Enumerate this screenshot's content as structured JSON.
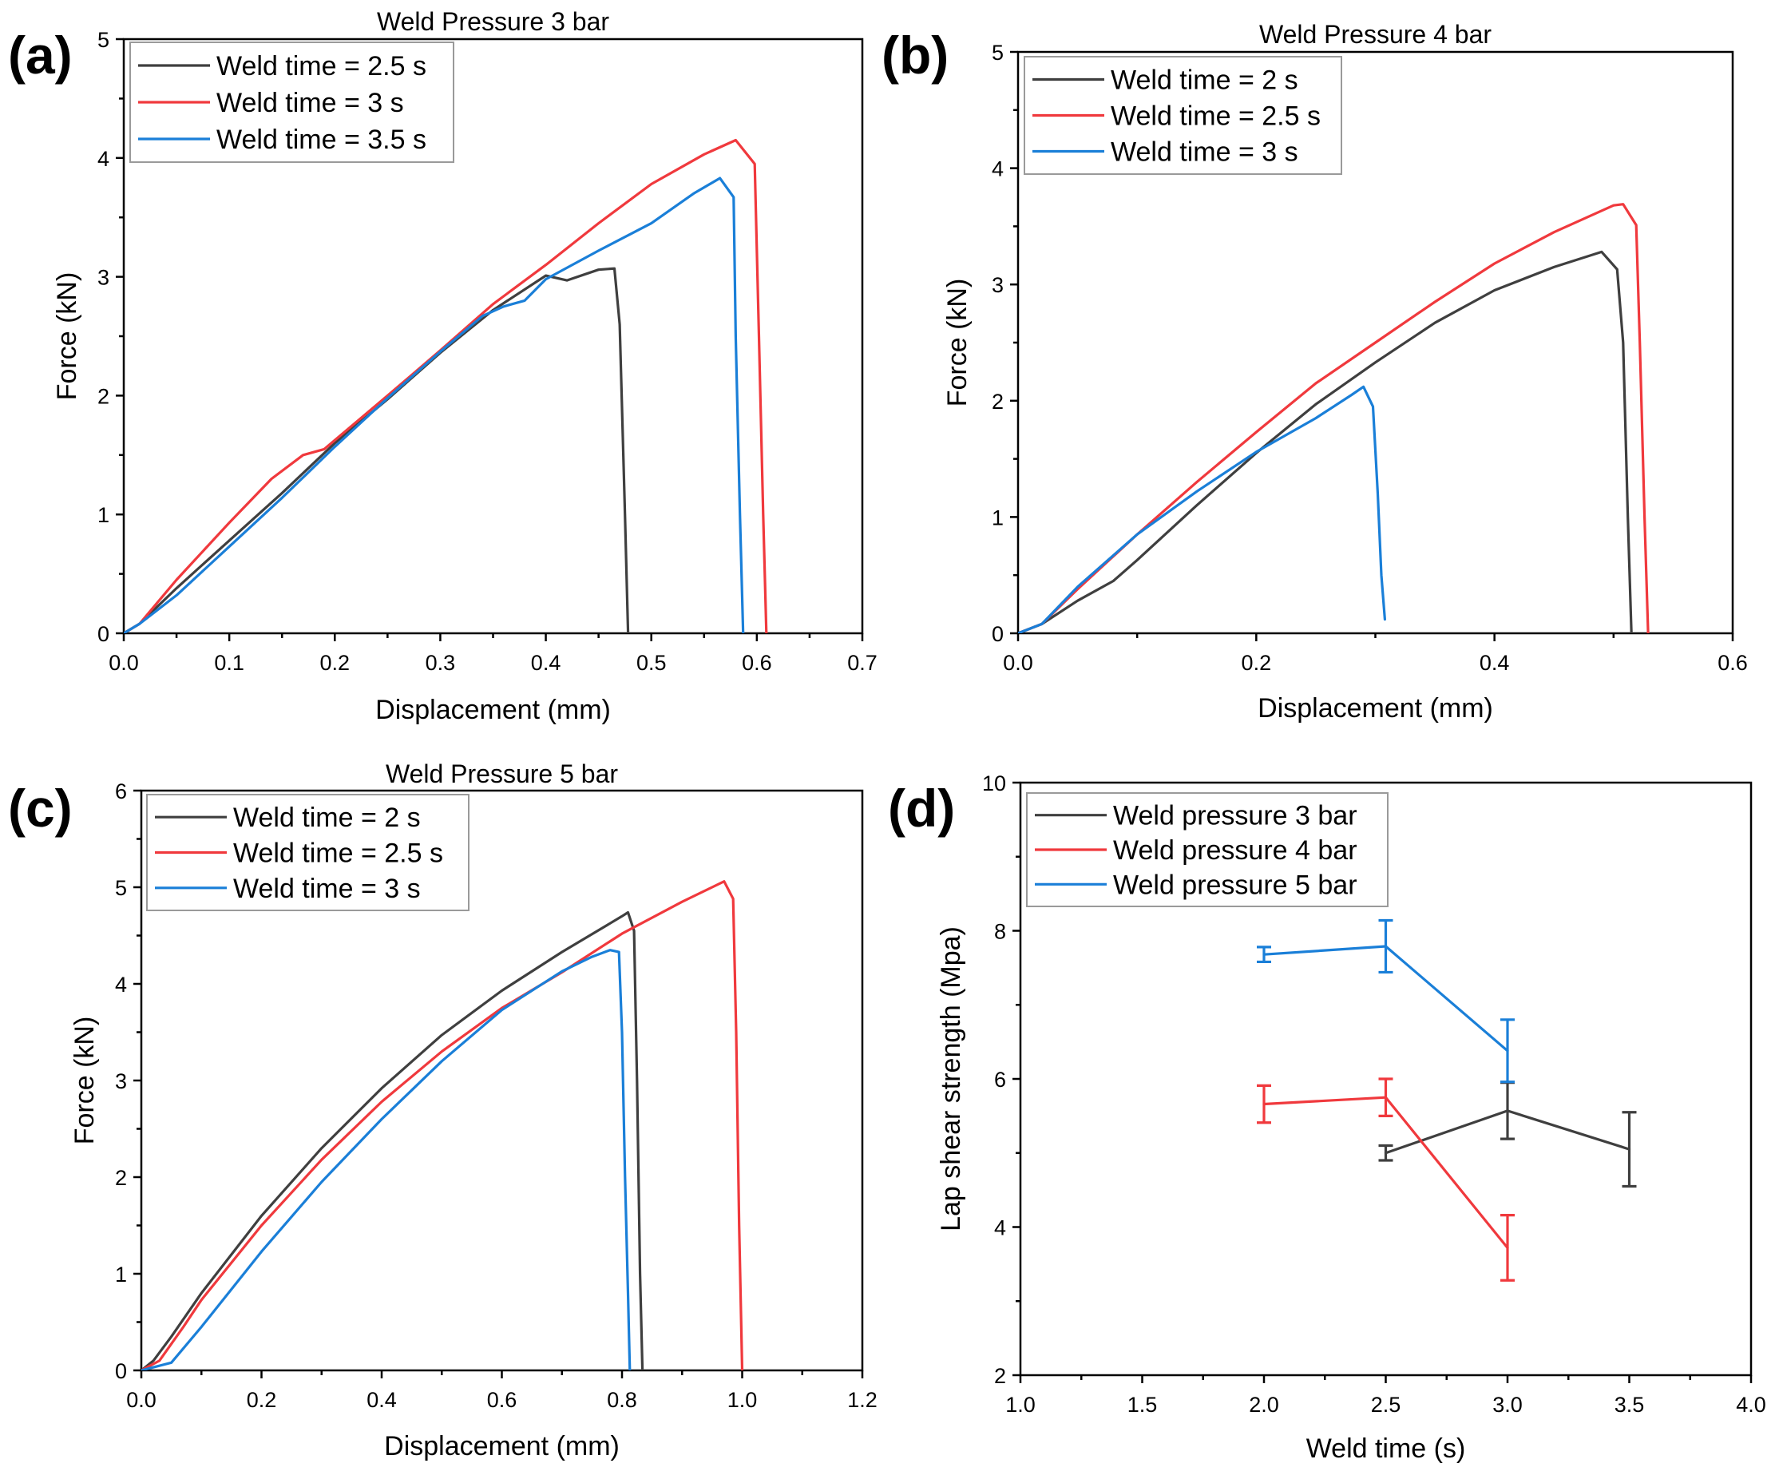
{
  "colors": {
    "gray": "#3f3f3f",
    "red": "#f0393d",
    "blue": "#1a7fd8"
  },
  "chart_data": [
    {
      "id": "a",
      "panel_label": "(a)",
      "type": "line",
      "title": "Weld Pressure 3 bar",
      "xlabel": "Displacement (mm)",
      "ylabel": "Force (kN)",
      "xlim": [
        0,
        0.7
      ],
      "ylim": [
        0,
        5
      ],
      "xticks": [
        0,
        0.1,
        0.2,
        0.3,
        0.4,
        0.5,
        0.6,
        0.7
      ],
      "xtick_labels": [
        "0.0",
        "0.1",
        "0.2",
        "0.3",
        "0.4",
        "0.5",
        "0.6",
        "0.7"
      ],
      "yticks": [
        0,
        1,
        2,
        3,
        4,
        5
      ],
      "ytick_labels": [
        "0",
        "1",
        "2",
        "3",
        "4",
        "5"
      ],
      "legend_position": "top-left",
      "series": [
        {
          "name": "Weld time = 2.5 s",
          "color": "gray",
          "points": [
            [
              0,
              0
            ],
            [
              0.015,
              0.08
            ],
            [
              0.05,
              0.38
            ],
            [
              0.1,
              0.78
            ],
            [
              0.15,
              1.18
            ],
            [
              0.2,
              1.6
            ],
            [
              0.25,
              1.97
            ],
            [
              0.3,
              2.36
            ],
            [
              0.35,
              2.72
            ],
            [
              0.4,
              3.01
            ],
            [
              0.42,
              2.97
            ],
            [
              0.45,
              3.06
            ],
            [
              0.465,
              3.07
            ],
            [
              0.47,
              2.6
            ],
            [
              0.475,
              1.0
            ],
            [
              0.478,
              0
            ]
          ]
        },
        {
          "name": "Weld time = 3 s",
          "color": "red",
          "points": [
            [
              0,
              0
            ],
            [
              0.015,
              0.08
            ],
            [
              0.05,
              0.45
            ],
            [
              0.1,
              0.93
            ],
            [
              0.14,
              1.3
            ],
            [
              0.17,
              1.5
            ],
            [
              0.19,
              1.55
            ],
            [
              0.25,
              2.0
            ],
            [
              0.3,
              2.38
            ],
            [
              0.35,
              2.77
            ],
            [
              0.4,
              3.1
            ],
            [
              0.45,
              3.45
            ],
            [
              0.5,
              3.78
            ],
            [
              0.55,
              4.03
            ],
            [
              0.58,
              4.15
            ],
            [
              0.598,
              3.95
            ],
            [
              0.602,
              2.5
            ],
            [
              0.606,
              1.0
            ],
            [
              0.609,
              0
            ]
          ]
        },
        {
          "name": "Weld time = 3.5 s",
          "color": "blue",
          "points": [
            [
              0,
              0
            ],
            [
              0.015,
              0.08
            ],
            [
              0.05,
              0.32
            ],
            [
              0.1,
              0.73
            ],
            [
              0.15,
              1.14
            ],
            [
              0.2,
              1.57
            ],
            [
              0.25,
              1.98
            ],
            [
              0.3,
              2.37
            ],
            [
              0.34,
              2.67
            ],
            [
              0.36,
              2.75
            ],
            [
              0.38,
              2.8
            ],
            [
              0.4,
              2.98
            ],
            [
              0.45,
              3.22
            ],
            [
              0.5,
              3.45
            ],
            [
              0.54,
              3.7
            ],
            [
              0.565,
              3.83
            ],
            [
              0.578,
              3.67
            ],
            [
              0.58,
              2.5
            ],
            [
              0.584,
              1.0
            ],
            [
              0.587,
              0
            ]
          ]
        }
      ]
    },
    {
      "id": "b",
      "panel_label": "(b)",
      "type": "line",
      "title": "Weld Pressure 4 bar",
      "xlabel": "Displacement (mm)",
      "ylabel": "Force (kN)",
      "xlim": [
        0,
        0.6
      ],
      "ylim": [
        0,
        5
      ],
      "xticks": [
        0,
        0.2,
        0.4,
        0.6
      ],
      "xtick_labels": [
        "0.0",
        "0.2",
        "0.4",
        "0.6"
      ],
      "yticks": [
        0,
        1,
        2,
        3,
        4,
        5
      ],
      "ytick_labels": [
        "0",
        "1",
        "2",
        "3",
        "4",
        "5"
      ],
      "legend_position": "top-left",
      "series": [
        {
          "name": "Weld time = 2 s",
          "color": "gray",
          "points": [
            [
              0,
              0
            ],
            [
              0.02,
              0.08
            ],
            [
              0.05,
              0.28
            ],
            [
              0.08,
              0.45
            ],
            [
              0.1,
              0.63
            ],
            [
              0.15,
              1.1
            ],
            [
              0.2,
              1.55
            ],
            [
              0.25,
              1.97
            ],
            [
              0.3,
              2.33
            ],
            [
              0.35,
              2.67
            ],
            [
              0.4,
              2.95
            ],
            [
              0.45,
              3.15
            ],
            [
              0.49,
              3.28
            ],
            [
              0.503,
              3.13
            ],
            [
              0.508,
              2.5
            ],
            [
              0.512,
              1.0
            ],
            [
              0.515,
              0
            ]
          ]
        },
        {
          "name": "Weld time = 2.5 s",
          "color": "red",
          "points": [
            [
              0,
              0
            ],
            [
              0.02,
              0.08
            ],
            [
              0.05,
              0.38
            ],
            [
              0.1,
              0.85
            ],
            [
              0.15,
              1.3
            ],
            [
              0.2,
              1.73
            ],
            [
              0.25,
              2.15
            ],
            [
              0.3,
              2.5
            ],
            [
              0.35,
              2.85
            ],
            [
              0.4,
              3.18
            ],
            [
              0.45,
              3.45
            ],
            [
              0.5,
              3.68
            ],
            [
              0.508,
              3.69
            ],
            [
              0.519,
              3.51
            ],
            [
              0.522,
              2.5
            ],
            [
              0.526,
              1.0
            ],
            [
              0.529,
              0
            ]
          ]
        },
        {
          "name": "Weld time = 3 s",
          "color": "blue",
          "points": [
            [
              0,
              0
            ],
            [
              0.02,
              0.08
            ],
            [
              0.05,
              0.4
            ],
            [
              0.1,
              0.85
            ],
            [
              0.15,
              1.22
            ],
            [
              0.2,
              1.56
            ],
            [
              0.25,
              1.85
            ],
            [
              0.28,
              2.05
            ],
            [
              0.29,
              2.12
            ],
            [
              0.298,
              1.95
            ],
            [
              0.302,
              1.2
            ],
            [
              0.305,
              0.5
            ],
            [
              0.308,
              0.12
            ]
          ]
        }
      ]
    },
    {
      "id": "c",
      "panel_label": "(c)",
      "type": "line",
      "title": "Weld Pressure 5 bar",
      "xlabel": "Displacement (mm)",
      "ylabel": "Force (kN)",
      "xlim": [
        0,
        1.2
      ],
      "ylim": [
        0,
        6
      ],
      "xticks": [
        0,
        0.2,
        0.4,
        0.6,
        0.8,
        1.0,
        1.2
      ],
      "xtick_labels": [
        "0.0",
        "0.2",
        "0.4",
        "0.6",
        "0.8",
        "1.0",
        "1.2"
      ],
      "yticks": [
        0,
        1,
        2,
        3,
        4,
        5,
        6
      ],
      "ytick_labels": [
        "0",
        "1",
        "2",
        "3",
        "4",
        "5",
        "6"
      ],
      "legend_position": "top-left",
      "series": [
        {
          "name": "Weld time = 2 s",
          "color": "gray",
          "points": [
            [
              0,
              0
            ],
            [
              0.02,
              0.1
            ],
            [
              0.05,
              0.35
            ],
            [
              0.1,
              0.8
            ],
            [
              0.2,
              1.6
            ],
            [
              0.3,
              2.3
            ],
            [
              0.4,
              2.92
            ],
            [
              0.5,
              3.47
            ],
            [
              0.6,
              3.93
            ],
            [
              0.7,
              4.33
            ],
            [
              0.8,
              4.7
            ],
            [
              0.81,
              4.74
            ],
            [
              0.82,
              4.55
            ],
            [
              0.825,
              3.0
            ],
            [
              0.83,
              1.0
            ],
            [
              0.834,
              0
            ]
          ]
        },
        {
          "name": "Weld time = 2.5 s",
          "color": "red",
          "points": [
            [
              0,
              0
            ],
            [
              0.03,
              0.1
            ],
            [
              0.07,
              0.45
            ],
            [
              0.1,
              0.73
            ],
            [
              0.2,
              1.5
            ],
            [
              0.3,
              2.18
            ],
            [
              0.4,
              2.78
            ],
            [
              0.5,
              3.3
            ],
            [
              0.6,
              3.75
            ],
            [
              0.7,
              4.12
            ],
            [
              0.8,
              4.52
            ],
            [
              0.9,
              4.85
            ],
            [
              0.97,
              5.06
            ],
            [
              0.985,
              4.88
            ],
            [
              0.99,
              3.5
            ],
            [
              0.995,
              1.5
            ],
            [
              1.0,
              0
            ]
          ]
        },
        {
          "name": "Weld time = 3 s",
          "color": "blue",
          "points": [
            [
              0,
              0
            ],
            [
              0.05,
              0.08
            ],
            [
              0.1,
              0.45
            ],
            [
              0.2,
              1.23
            ],
            [
              0.3,
              1.95
            ],
            [
              0.4,
              2.6
            ],
            [
              0.5,
              3.2
            ],
            [
              0.6,
              3.73
            ],
            [
              0.7,
              4.13
            ],
            [
              0.75,
              4.28
            ],
            [
              0.78,
              4.35
            ],
            [
              0.795,
              4.33
            ],
            [
              0.8,
              3.5
            ],
            [
              0.805,
              2.0
            ],
            [
              0.81,
              0.8
            ],
            [
              0.813,
              0
            ]
          ]
        }
      ]
    },
    {
      "id": "d",
      "panel_label": "(d)",
      "type": "line",
      "title": "",
      "xlabel": "Weld time (s)",
      "ylabel": "Lap shear strength (Mpa)",
      "xlim": [
        1.0,
        4.0
      ],
      "ylim": [
        2,
        10
      ],
      "xticks": [
        1.0,
        1.5,
        2.0,
        2.5,
        3.0,
        3.5,
        4.0
      ],
      "xtick_labels": [
        "1.0",
        "1.5",
        "2.0",
        "2.5",
        "3.0",
        "3.5",
        "4.0"
      ],
      "yticks": [
        2,
        4,
        6,
        8,
        10
      ],
      "ytick_labels": [
        "2",
        "4",
        "6",
        "8",
        "10"
      ],
      "legend_position": "top-left",
      "series": [
        {
          "name": "Weld pressure 3 bar",
          "color": "gray",
          "points": [
            [
              2.5,
              5.0
            ],
            [
              3.0,
              5.57
            ],
            [
              3.5,
              5.05
            ]
          ],
          "errors": [
            0.1,
            0.38,
            0.5
          ]
        },
        {
          "name": "Weld pressure 4 bar",
          "color": "red",
          "points": [
            [
              2.0,
              5.66
            ],
            [
              2.5,
              5.75
            ],
            [
              3.0,
              3.72
            ]
          ],
          "errors": [
            0.25,
            0.25,
            0.44
          ]
        },
        {
          "name": "Weld pressure 5 bar",
          "color": "blue",
          "points": [
            [
              2.0,
              7.68
            ],
            [
              2.5,
              7.79
            ],
            [
              3.0,
              6.38
            ]
          ],
          "errors": [
            0.1,
            0.35,
            0.42
          ]
        }
      ]
    }
  ]
}
